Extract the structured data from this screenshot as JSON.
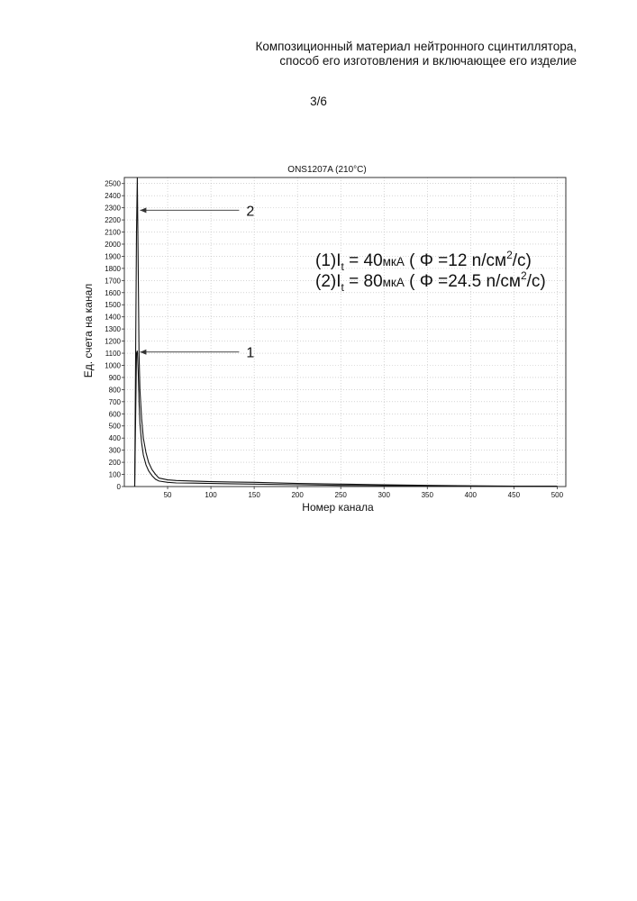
{
  "header": {
    "line1": "Композиционный материал нейтронного сцинтиллятора,",
    "line2": "способ его изготовления и включающее его изделие",
    "page": "3/6"
  },
  "chart_data": {
    "type": "line",
    "title": "ONS1207A (210°C)",
    "xlabel": "Номер канала",
    "ylabel": "Ед. счета на канал",
    "xlim": [
      0,
      510
    ],
    "ylim": [
      0,
      2550
    ],
    "xticks": [
      50,
      100,
      150,
      200,
      250,
      300,
      350,
      400,
      450,
      500
    ],
    "yticks": [
      0,
      100,
      200,
      300,
      400,
      500,
      600,
      700,
      800,
      900,
      1000,
      1100,
      1200,
      1300,
      1400,
      1500,
      1600,
      1700,
      1800,
      1900,
      2000,
      2100,
      2200,
      2300,
      2400,
      2500
    ],
    "grid": true,
    "series": [
      {
        "name": "1",
        "x": [
          12,
          14,
          15,
          16,
          17,
          18,
          20,
          22,
          25,
          28,
          32,
          36,
          40,
          50,
          60,
          80,
          100,
          150,
          200,
          250,
          300,
          350,
          400,
          450,
          500
        ],
        "y": [
          0,
          1100,
          1120,
          950,
          700,
          520,
          360,
          260,
          180,
          130,
          90,
          60,
          45,
          35,
          30,
          28,
          25,
          20,
          15,
          10,
          8,
          5,
          4,
          2,
          2
        ]
      },
      {
        "name": "2",
        "x": [
          12,
          14,
          15,
          16,
          17,
          18,
          20,
          22,
          25,
          28,
          32,
          36,
          40,
          50,
          60,
          80,
          100,
          150,
          200,
          250,
          300,
          350,
          400,
          450,
          500
        ],
        "y": [
          0,
          2100,
          2550,
          1800,
          1100,
          800,
          560,
          400,
          280,
          200,
          140,
          100,
          70,
          55,
          50,
          45,
          40,
          35,
          25,
          20,
          15,
          10,
          6,
          4,
          3
        ]
      }
    ],
    "callouts": [
      {
        "label": "2",
        "x": 15,
        "y": 2280
      },
      {
        "label": "1",
        "x": 15,
        "y": 1110
      }
    ],
    "legend_text": {
      "line1_prefix": "(1)I",
      "line1_sub": "t",
      "line1_mid": " = 40",
      "line1_unit": "мкА",
      "line1_phi": " ( Φ =12 n/см",
      "line1_sup": "2",
      "line1_end": "/с)",
      "line2_prefix": "(2)I",
      "line2_sub": "t",
      "line2_mid": " = 80",
      "line2_unit": "мкА",
      "line2_phi": " ( Φ =24.5 n/см",
      "line2_sup": "2",
      "line2_end": "/с)"
    }
  }
}
